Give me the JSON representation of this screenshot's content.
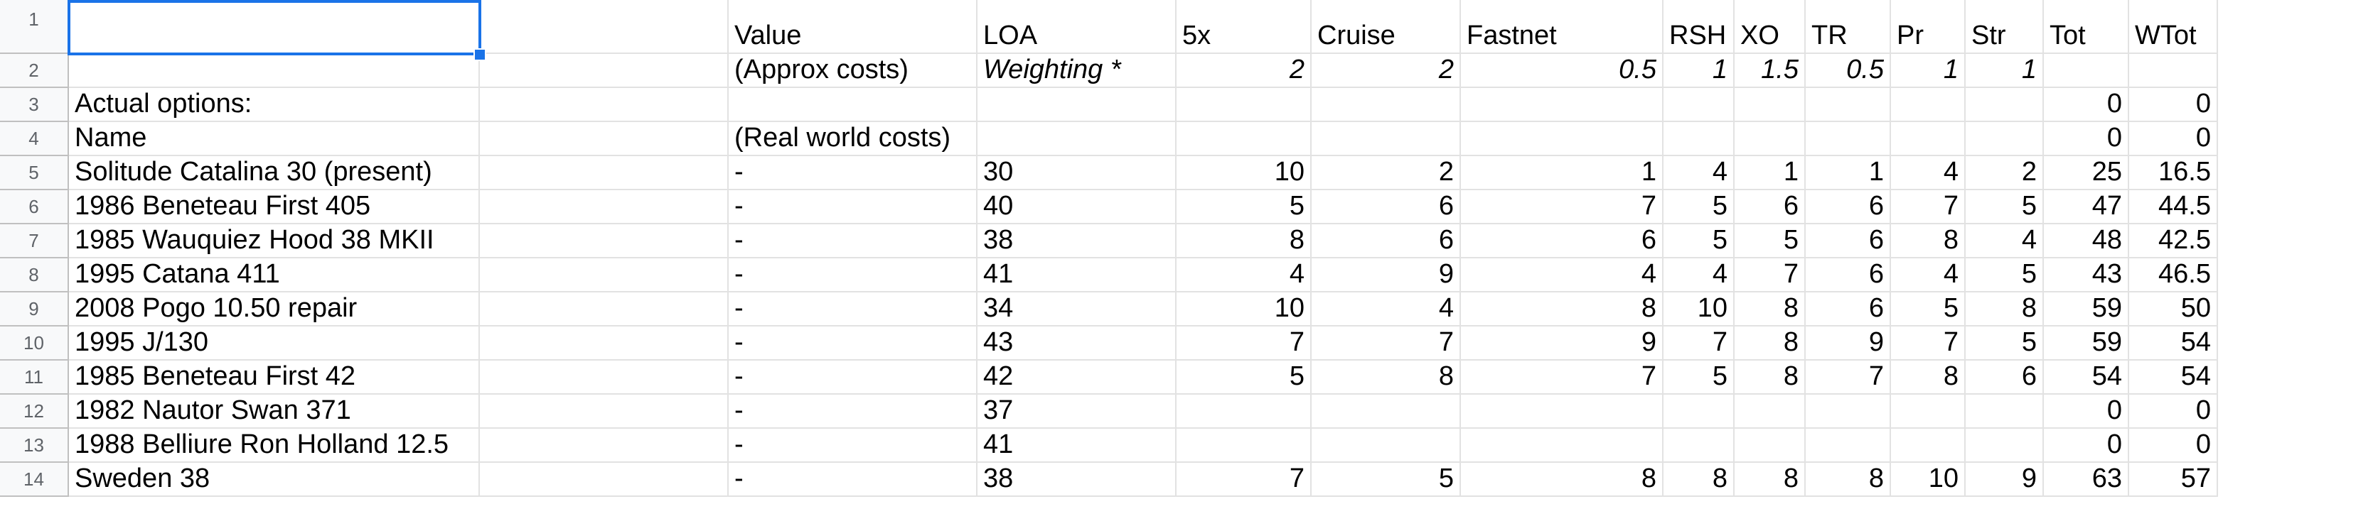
{
  "sheet": {
    "row_numbers": [
      "1",
      "2",
      "3",
      "4",
      "5",
      "6",
      "7",
      "8",
      "9",
      "10",
      "11",
      "12",
      "13",
      "14"
    ],
    "rows": [
      [
        "",
        "",
        "Value",
        "LOA",
        "5x",
        "Cruise",
        "Fastnet",
        "RSH",
        "XO",
        "TR",
        "Pr",
        "Str",
        "Tot",
        "WTot"
      ],
      [
        "",
        "",
        "(Approx costs)",
        "Weighting *",
        "2",
        "2",
        "0.5",
        "1",
        "1.5",
        "0.5",
        "1",
        "1",
        "",
        ""
      ],
      [
        "Actual options:",
        "",
        "",
        "",
        "",
        "",
        "",
        "",
        "",
        "",
        "",
        "",
        "0",
        "0"
      ],
      [
        "Name",
        "",
        "(Real world costs)",
        "",
        "",
        "",
        "",
        "",
        "",
        "",
        "",
        "",
        "0",
        "0"
      ],
      [
        "Solitude Catalina 30 (present)",
        "",
        "-",
        "30",
        "10",
        "2",
        "1",
        "4",
        "1",
        "1",
        "4",
        "2",
        "25",
        "16.5"
      ],
      [
        "1986 Beneteau First 405",
        "",
        "-",
        "40",
        "5",
        "6",
        "7",
        "5",
        "6",
        "6",
        "7",
        "5",
        "47",
        "44.5"
      ],
      [
        "1985 Wauquiez Hood 38 MKII",
        "",
        "-",
        "38",
        "8",
        "6",
        "6",
        "5",
        "5",
        "6",
        "8",
        "4",
        "48",
        "42.5"
      ],
      [
        "1995 Catana 411",
        "",
        "-",
        "41",
        "4",
        "9",
        "4",
        "4",
        "7",
        "6",
        "4",
        "5",
        "43",
        "46.5"
      ],
      [
        "2008 Pogo 10.50 repair",
        "",
        "-",
        "34",
        "10",
        "4",
        "8",
        "10",
        "8",
        "6",
        "5",
        "8",
        "59",
        "50"
      ],
      [
        "1995 J/130",
        "",
        "-",
        "43",
        "7",
        "7",
        "9",
        "7",
        "8",
        "9",
        "7",
        "5",
        "59",
        "54"
      ],
      [
        "1985 Beneteau First 42",
        "",
        "-",
        "42",
        "5",
        "8",
        "7",
        "5",
        "8",
        "7",
        "8",
        "6",
        "54",
        "54"
      ],
      [
        "1982 Nautor Swan 371",
        "",
        "-",
        "37",
        "",
        "",
        "",
        "",
        "",
        "",
        "",
        "",
        "0",
        "0"
      ],
      [
        "1988 Belliure Ron Holland 12.5",
        "",
        "-",
        "41",
        "",
        "",
        "",
        "",
        "",
        "",
        "",
        "",
        "0",
        "0"
      ],
      [
        "Sweden 38",
        "",
        "-",
        "38",
        "7",
        "5",
        "8",
        "8",
        "8",
        "8",
        "10",
        "9",
        "63",
        "57"
      ]
    ],
    "selected_cell": "A1",
    "colors": {
      "selection": "#1a73e8",
      "grid": "#e2e2e2",
      "header_bg": "#f8f9fa"
    }
  }
}
